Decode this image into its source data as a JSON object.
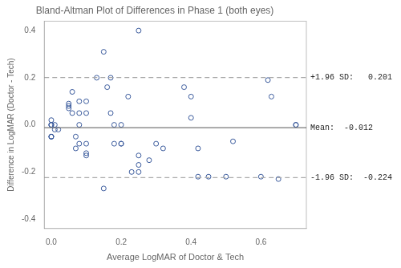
{
  "chart_data": {
    "type": "scatter",
    "title": "Bland-Altman Plot of Differences in Phase 1 (both eyes)",
    "xlabel": "Average LogMAR of Doctor & Tech",
    "ylabel": "Difference in LogMAR (Doctor - Tech)",
    "x": [
      0.0,
      0.0,
      0.0,
      0.0,
      0.0,
      0.0,
      0.0,
      0.01,
      0.01,
      0.02,
      0.05,
      0.05,
      0.05,
      0.06,
      0.06,
      0.07,
      0.07,
      0.08,
      0.08,
      0.08,
      0.08,
      0.1,
      0.1,
      0.1,
      0.1,
      0.1,
      0.13,
      0.15,
      0.15,
      0.16,
      0.17,
      0.17,
      0.18,
      0.18,
      0.2,
      0.2,
      0.2,
      0.22,
      0.23,
      0.25,
      0.25,
      0.25,
      0.25,
      0.28,
      0.3,
      0.32,
      0.38,
      0.4,
      0.4,
      0.42,
      0.42,
      0.45,
      0.5,
      0.52,
      0.6,
      0.62,
      0.63,
      0.65,
      0.7,
      0.7
    ],
    "values": [
      0.0,
      0.0,
      0.0,
      -0.05,
      -0.05,
      -0.05,
      0.02,
      -0.02,
      0.0,
      -0.02,
      0.08,
      0.09,
      0.07,
      0.14,
      0.05,
      -0.05,
      -0.1,
      0.1,
      0.05,
      0.0,
      -0.08,
      0.1,
      0.05,
      -0.08,
      -0.12,
      -0.13,
      0.2,
      0.31,
      -0.27,
      0.16,
      0.05,
      0.2,
      0.0,
      -0.08,
      -0.08,
      -0.08,
      0.0,
      0.12,
      -0.2,
      -0.13,
      -0.2,
      -0.17,
      0.4,
      -0.15,
      -0.08,
      -0.1,
      0.16,
      0.12,
      0.03,
      -0.1,
      -0.22,
      -0.22,
      -0.22,
      -0.07,
      -0.22,
      0.19,
      0.12,
      -0.23,
      0.0,
      0.0
    ],
    "color": "#3a5a9c",
    "hlines": [
      {
        "y": -0.012,
        "color": "#777777",
        "line_style": "solid"
      },
      {
        "y": 0.201,
        "color": "#aaaaaa",
        "line_style": "dashed"
      },
      {
        "y": -0.224,
        "color": "#aaaaaa",
        "line_style": "dashed"
      }
    ],
    "annotations": [
      {
        "y": 0.201,
        "text": "+1.96 SD:   0.201"
      },
      {
        "y": -0.012,
        "text": "Mean:  -0.012"
      },
      {
        "y": -0.224,
        "text": "-1.96 SD:  -0.224"
      }
    ],
    "xlim": [
      -0.02,
      0.73
    ],
    "ylim": [
      -0.44,
      0.44
    ],
    "xticks": [
      {
        "value": 0.0,
        "label": "0.0"
      },
      0.2,
      0.4,
      0.6
    ],
    "yticks": [
      -0.4,
      -0.2,
      {
        "value": 0.0,
        "label": "0.0"
      },
      0.2,
      0.4
    ],
    "grid": false
  }
}
